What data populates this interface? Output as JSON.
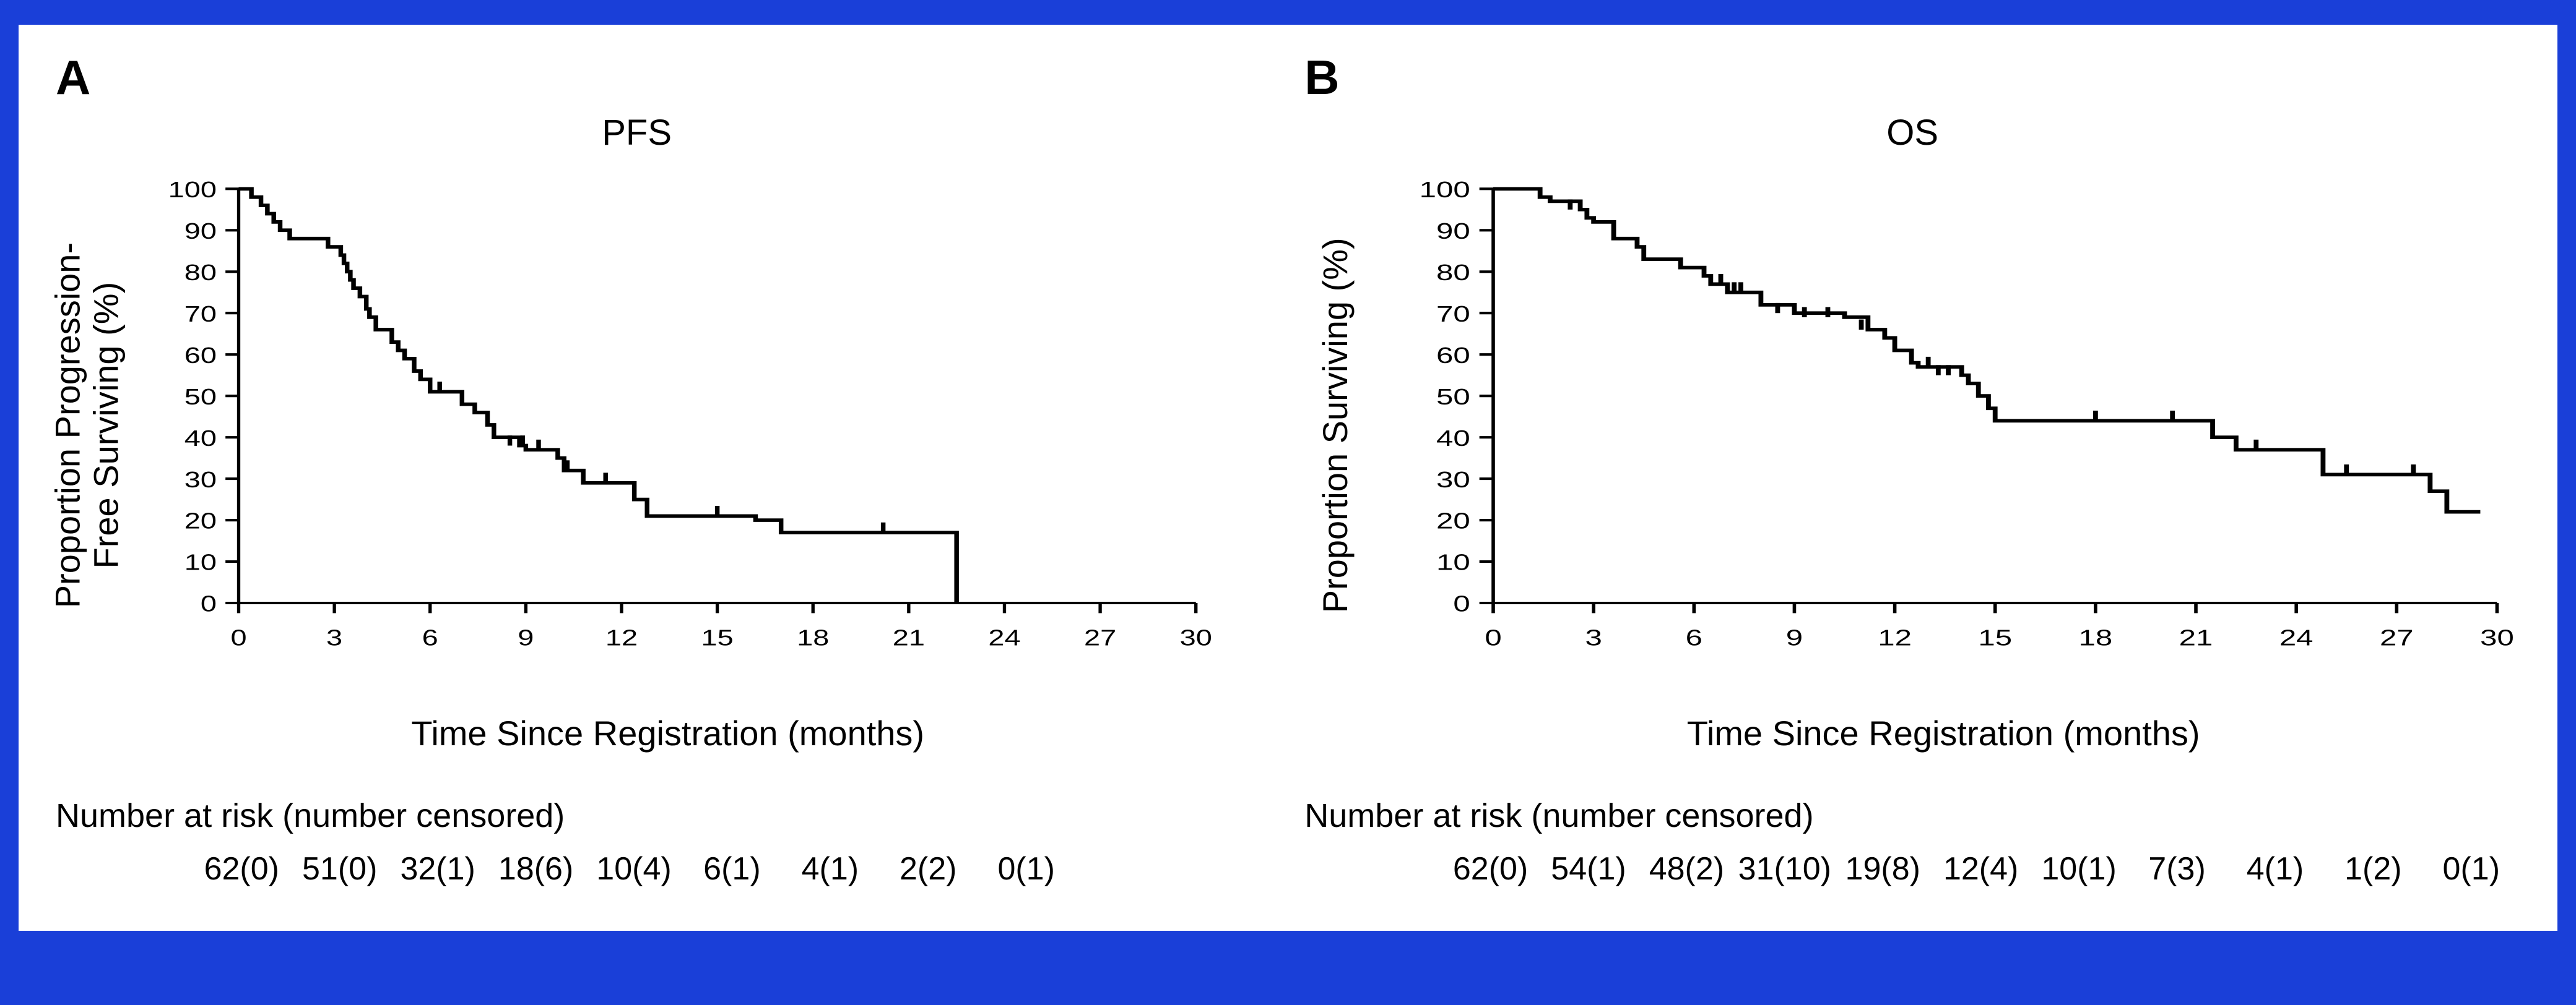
{
  "background_color": "#1a3fd8",
  "card_background": "#ffffff",
  "line_color": "#000000",
  "text_color": "#000000",
  "font_family": "Arial",
  "panelA": {
    "letter": "A",
    "title": "PFS",
    "ylabel": "Proportion Progression-\nFree Surviving (%)",
    "xlabel": "Time Since Registration (months)",
    "ylim": [
      0,
      100
    ],
    "ytick_step": 10,
    "xlim": [
      0,
      30
    ],
    "xtick_step": 3,
    "axis_fontsize": 44,
    "label_fontsize": 56,
    "line_width": 6,
    "curve": [
      [
        0,
        100
      ],
      [
        0.4,
        98
      ],
      [
        0.7,
        96
      ],
      [
        0.9,
        94
      ],
      [
        1.1,
        92
      ],
      [
        1.3,
        90
      ],
      [
        1.6,
        88
      ],
      [
        2.5,
        88
      ],
      [
        2.8,
        86
      ],
      [
        3.2,
        84
      ],
      [
        3.3,
        82
      ],
      [
        3.4,
        80
      ],
      [
        3.5,
        78
      ],
      [
        3.6,
        76
      ],
      [
        3.8,
        74
      ],
      [
        4.0,
        71
      ],
      [
        4.1,
        69
      ],
      [
        4.3,
        66
      ],
      [
        4.8,
        63
      ],
      [
        5.0,
        61
      ],
      [
        5.2,
        59
      ],
      [
        5.5,
        56
      ],
      [
        5.7,
        54
      ],
      [
        6.0,
        51
      ],
      [
        6.8,
        51
      ],
      [
        7.0,
        48
      ],
      [
        7.4,
        46
      ],
      [
        7.8,
        43
      ],
      [
        8.0,
        40
      ],
      [
        8.8,
        38
      ],
      [
        9.0,
        37
      ],
      [
        10.0,
        35
      ],
      [
        10.2,
        32
      ],
      [
        10.8,
        29
      ],
      [
        12.0,
        29
      ],
      [
        12.4,
        25
      ],
      [
        12.8,
        21
      ],
      [
        15.8,
        21
      ],
      [
        16.2,
        20
      ],
      [
        17.0,
        17
      ],
      [
        20.5,
        17
      ],
      [
        22.5,
        17
      ],
      [
        22.5,
        0
      ]
    ],
    "censor_marks": [
      [
        6.3,
        51
      ],
      [
        8.5,
        38
      ],
      [
        8.9,
        38
      ],
      [
        9.4,
        37
      ],
      [
        10.3,
        32
      ],
      [
        11.5,
        29
      ],
      [
        15.0,
        21
      ],
      [
        20.2,
        17
      ]
    ],
    "risk_title": "Number at risk (number censored)",
    "risk": [
      "62(0)",
      "51(0)",
      "32(1)",
      "18(6)",
      "10(4)",
      "6(1)",
      "4(1)",
      "2(2)",
      "0(1)"
    ]
  },
  "panelB": {
    "letter": "B",
    "title": "OS",
    "ylabel": "Proportion Surviving (%)",
    "xlabel": "Time Since Registration (months)",
    "ylim": [
      0,
      100
    ],
    "ytick_step": 10,
    "xlim": [
      0,
      30
    ],
    "xtick_step": 3,
    "axis_fontsize": 44,
    "label_fontsize": 56,
    "line_width": 6,
    "curve": [
      [
        0,
        100
      ],
      [
        1.0,
        100
      ],
      [
        1.4,
        98
      ],
      [
        1.7,
        97
      ],
      [
        2.6,
        95
      ],
      [
        2.8,
        93
      ],
      [
        3.0,
        92
      ],
      [
        3.6,
        88
      ],
      [
        4.3,
        86
      ],
      [
        4.5,
        83
      ],
      [
        5.6,
        81
      ],
      [
        6.3,
        79
      ],
      [
        6.5,
        77
      ],
      [
        7.0,
        75
      ],
      [
        8.0,
        72
      ],
      [
        9.0,
        70
      ],
      [
        10.5,
        69
      ],
      [
        11.2,
        66
      ],
      [
        11.7,
        64
      ],
      [
        12.0,
        61
      ],
      [
        12.5,
        58
      ],
      [
        12.7,
        57
      ],
      [
        14.0,
        55
      ],
      [
        14.2,
        53
      ],
      [
        14.5,
        50
      ],
      [
        14.8,
        47
      ],
      [
        15.0,
        44
      ],
      [
        21.0,
        44
      ],
      [
        21.5,
        40
      ],
      [
        22.2,
        37
      ],
      [
        24.6,
        37
      ],
      [
        24.8,
        31
      ],
      [
        27.8,
        31
      ],
      [
        28.0,
        27
      ],
      [
        28.5,
        22
      ],
      [
        29.5,
        22
      ]
    ],
    "censor_marks": [
      [
        2.3,
        95
      ],
      [
        6.8,
        77
      ],
      [
        7.2,
        75
      ],
      [
        7.4,
        75
      ],
      [
        8.5,
        70
      ],
      [
        9.3,
        69
      ],
      [
        10.0,
        69
      ],
      [
        11.0,
        66
      ],
      [
        13.0,
        57
      ],
      [
        13.3,
        55
      ],
      [
        13.6,
        55
      ],
      [
        18.0,
        44
      ],
      [
        20.3,
        44
      ],
      [
        22.8,
        37
      ],
      [
        25.5,
        31
      ],
      [
        27.5,
        31
      ]
    ],
    "risk_title": "Number at risk (number censored)",
    "risk": [
      "62(0)",
      "54(1)",
      "48(2)",
      "31(10)",
      "19(8)",
      "12(4)",
      "10(1)",
      "7(3)",
      "4(1)",
      "1(2)",
      "0(1)"
    ]
  }
}
